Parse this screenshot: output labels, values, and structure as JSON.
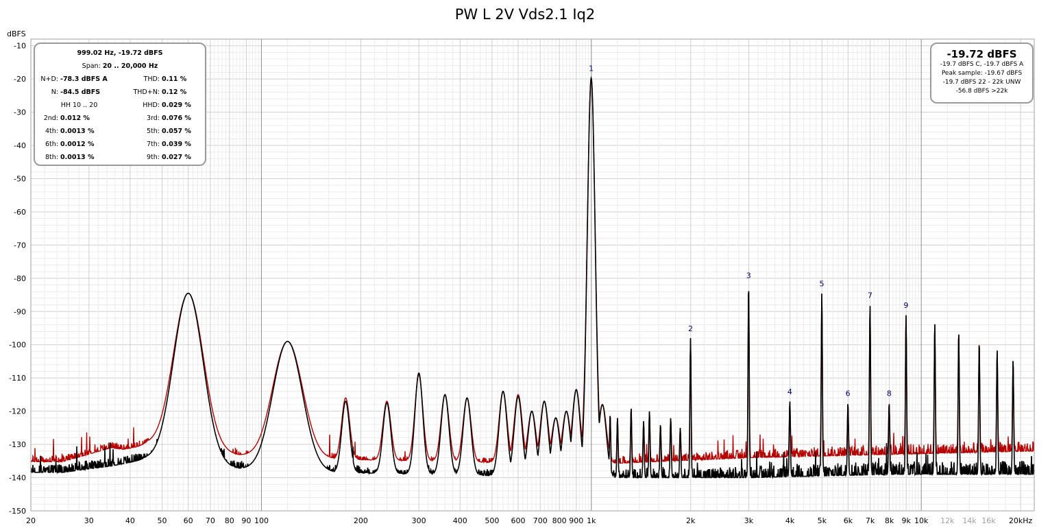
{
  "chart_data": {
    "type": "line",
    "title": "PW L 2V Vds2.1 Iq2",
    "ylabel": "dBFS",
    "xlabel": "",
    "x_scale": "log",
    "xlim": [
      20,
      22000
    ],
    "ylim": [
      -150,
      -8
    ],
    "grid": true,
    "y_ticks": [
      -10,
      -20,
      -30,
      -40,
      -50,
      -60,
      -70,
      -80,
      -90,
      -100,
      -110,
      -120,
      -130,
      -140,
      -150
    ],
    "x_ticks": [
      {
        "v": 20,
        "label": "20"
      },
      {
        "v": 30,
        "label": "30"
      },
      {
        "v": 40,
        "label": "40"
      },
      {
        "v": 50,
        "label": "50"
      },
      {
        "v": 60,
        "label": "60"
      },
      {
        "v": 70,
        "label": "70"
      },
      {
        "v": 80,
        "label": "80"
      },
      {
        "v": 90,
        "label": "90"
      },
      {
        "v": 100,
        "label": "100"
      },
      {
        "v": 200,
        "label": "200"
      },
      {
        "v": 300,
        "label": "300"
      },
      {
        "v": 400,
        "label": "400"
      },
      {
        "v": 500,
        "label": "500"
      },
      {
        "v": 600,
        "label": "600"
      },
      {
        "v": 700,
        "label": "700"
      },
      {
        "v": 800,
        "label": "800"
      },
      {
        "v": 900,
        "label": "900"
      },
      {
        "v": 1000,
        "label": "1k"
      },
      {
        "v": 2000,
        "label": "2k"
      },
      {
        "v": 3000,
        "label": "3k"
      },
      {
        "v": 4000,
        "label": "4k"
      },
      {
        "v": 5000,
        "label": "5k"
      },
      {
        "v": 6000,
        "label": "6k"
      },
      {
        "v": 7000,
        "label": "7k"
      },
      {
        "v": 8000,
        "label": "8k"
      },
      {
        "v": 9000,
        "label": "9k"
      },
      {
        "v": 10000,
        "label": "10k"
      },
      {
        "v": 12000,
        "label": "12k",
        "muted": true
      },
      {
        "v": 14000,
        "label": "14k",
        "muted": true
      },
      {
        "v": 16000,
        "label": "16k",
        "muted": true
      },
      {
        "v": 20000,
        "label": "20kHz"
      }
    ],
    "series": [
      {
        "color": "#b50000",
        "floor": [
          [
            20,
            -134.5
          ],
          [
            28,
            -134.5
          ],
          [
            40,
            -131
          ],
          [
            45,
            -130
          ],
          [
            100,
            -134
          ],
          [
            1000,
            -136
          ],
          [
            3000,
            -134
          ],
          [
            8000,
            -133
          ],
          [
            22000,
            -132
          ]
        ],
        "hump_points": [
          [
            25,
            -135.2
          ],
          [
            35,
            -131
          ],
          [
            38,
            -131.5
          ],
          [
            42,
            -130.8
          ],
          [
            45,
            -130
          ]
        ],
        "peaks": [
          [
            60,
            -84.5
          ],
          [
            120,
            -99
          ],
          [
            180,
            -116
          ],
          [
            240,
            -117
          ],
          [
            300,
            -109
          ],
          [
            360,
            -115
          ],
          [
            420,
            -116
          ],
          [
            540,
            -114
          ],
          [
            600,
            -115
          ],
          [
            660,
            -120
          ],
          [
            720,
            -117
          ],
          [
            780,
            -122
          ],
          [
            840,
            -120
          ],
          [
            900,
            -113.5
          ],
          [
            999.02,
            -19.7
          ],
          [
            1080,
            -118
          ],
          [
            1140,
            -121
          ],
          [
            1200,
            -122
          ],
          [
            1320,
            -119
          ],
          [
            1440,
            -123
          ],
          [
            1500,
            -120
          ],
          [
            1620,
            -124
          ],
          [
            1740,
            -122
          ],
          [
            1860,
            -125
          ],
          [
            1998,
            -98
          ],
          [
            2997,
            -82
          ],
          [
            3996,
            -117
          ],
          [
            4995,
            -84.5
          ],
          [
            5994,
            -117.5
          ],
          [
            6993,
            -88
          ],
          [
            7992,
            -117.5
          ],
          [
            8991,
            -91
          ],
          [
            10989,
            -93.5
          ],
          [
            12987,
            -96
          ],
          [
            14985,
            -99
          ],
          [
            16983,
            -101.5
          ],
          [
            18981,
            -104.5
          ]
        ],
        "noise_amplitude": 6
      },
      {
        "color": "#000000",
        "floor": [
          [
            20,
            -138.5
          ],
          [
            28,
            -137.8
          ],
          [
            40,
            -135
          ],
          [
            45,
            -134.5
          ],
          [
            100,
            -138
          ],
          [
            1000,
            -140
          ],
          [
            3000,
            -140
          ],
          [
            8000,
            -139
          ],
          [
            22000,
            -139
          ]
        ],
        "hump_points": [
          [
            25,
            -138.4
          ],
          [
            35,
            -136.5
          ],
          [
            42,
            -135
          ],
          [
            45,
            -134.5
          ]
        ],
        "peaks": [
          [
            60,
            -84.5
          ],
          [
            120,
            -99
          ],
          [
            180,
            -117
          ],
          [
            240,
            -117.5
          ],
          [
            300,
            -108.5
          ],
          [
            360,
            -115
          ],
          [
            420,
            -116
          ],
          [
            540,
            -114
          ],
          [
            600,
            -115.5
          ],
          [
            660,
            -120
          ],
          [
            720,
            -117
          ],
          [
            780,
            -122
          ],
          [
            840,
            -120
          ],
          [
            900,
            -113.5
          ],
          [
            999.02,
            -19.7
          ],
          [
            1080,
            -118
          ],
          [
            1140,
            -121
          ],
          [
            1200,
            -122
          ],
          [
            1320,
            -119
          ],
          [
            1440,
            -123
          ],
          [
            1500,
            -120
          ],
          [
            1620,
            -124
          ],
          [
            1740,
            -122
          ],
          [
            1860,
            -125
          ],
          [
            1998,
            -98
          ],
          [
            2997,
            -82
          ],
          [
            3996,
            -117
          ],
          [
            4995,
            -84.5
          ],
          [
            5994,
            -117.5
          ],
          [
            6993,
            -88
          ],
          [
            7992,
            -117.5
          ],
          [
            8991,
            -91
          ],
          [
            10989,
            -93.5
          ],
          [
            12987,
            -96
          ],
          [
            14985,
            -99
          ],
          [
            16983,
            -101.5
          ],
          [
            18981,
            -104.5
          ]
        ],
        "noise_amplitude": 8
      }
    ],
    "harmonic_markers": [
      {
        "label": "1",
        "freq": 999.02,
        "db": -19.7
      },
      {
        "label": "2",
        "freq": 1998,
        "db": -98
      },
      {
        "label": "3",
        "freq": 2997,
        "db": -82
      },
      {
        "label": "4",
        "freq": 3996,
        "db": -117
      },
      {
        "label": "5",
        "freq": 4995,
        "db": -84.5
      },
      {
        "label": "6",
        "freq": 5994,
        "db": -117.5
      },
      {
        "label": "7",
        "freq": 6993,
        "db": -88
      },
      {
        "label": "8",
        "freq": 7992,
        "db": -117.5
      },
      {
        "label": "9",
        "freq": 8991,
        "db": -91
      }
    ],
    "marker_color": "#00007a"
  },
  "measure_box": {
    "header": "999.02 Hz, -19.72 dBFS",
    "span_label": "Span:",
    "span_value": "20 .. 20,000 Hz",
    "nd_label": "N+D:",
    "nd_value": "-78.3 dBFS A",
    "thd_label": "THD:",
    "thd_value": "0.11 %",
    "n_label": "N:",
    "n_value": "-84.5 dBFS",
    "thdn_label": "THD+N:",
    "thdn_value": "0.12 %",
    "hh_label": "HH 10 .. 20",
    "hhd_label": "HHD:",
    "hhd_value": "0.029 %",
    "h2_label": "2nd:",
    "h2_value": "0.012 %",
    "h3_label": "3rd:",
    "h3_value": "0.076 %",
    "h4_label": "4th:",
    "h4_value": "0.0013 %",
    "h5_label": "5th:",
    "h5_value": "0.057 %",
    "h6_label": "6th:",
    "h6_value": "0.0012 %",
    "h7_label": "7th:",
    "h7_value": "0.039 %",
    "h8_label": "8th:",
    "h8_value": "0.0013 %",
    "h9_label": "9th:",
    "h9_value": "0.027 %"
  },
  "level_box": {
    "main": "-19.72 dBFS",
    "line1": "-19.7 dBFS C, -19.7 dBFS A",
    "line2": "Peak sample: -19.67 dBFS",
    "line3": "-19.7 dBFS 22 - 22k UNW",
    "line4": "-56.8 dBFS >22k"
  }
}
